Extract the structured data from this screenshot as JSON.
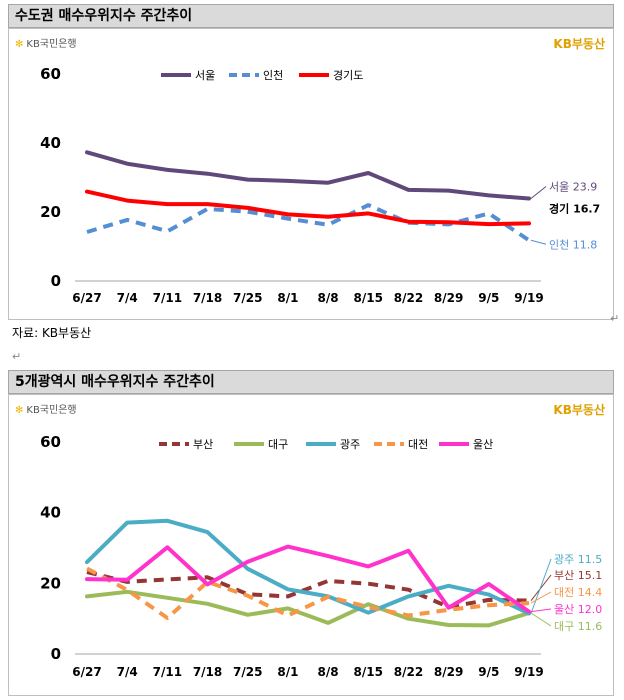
{
  "sections": [
    {
      "title": "수도권 매수우위지수 주간추이"
    },
    {
      "title": "5개광역시 매수우위지수 주간추이"
    }
  ],
  "branding": {
    "bank_logo": "KB국민은행",
    "brand_right": "KB부동산"
  },
  "source": "자료: KB부동산",
  "colors": {
    "서울": "#60497a",
    "인천": "#558ed5",
    "경기도": "#ff0000",
    "부산": "#943634",
    "대구": "#9bbb59",
    "광주": "#4bacc6",
    "대전": "#f79646",
    "울산": "#ff33cc"
  },
  "chart_data": [
    {
      "type": "line",
      "title": "수도권 매수우위지수 주간추이",
      "categories": [
        "6/27",
        "7/4",
        "7/11",
        "7/18",
        "7/25",
        "8/1",
        "8/8",
        "8/15",
        "8/22",
        "8/29",
        "9/5",
        "9/19"
      ],
      "ylim": [
        0,
        60
      ],
      "yticks": [
        0,
        20,
        40,
        60
      ],
      "legend": "top",
      "series": [
        {
          "name": "서울",
          "style": "solid",
          "values": [
            37.3,
            34.0,
            32.2,
            31.1,
            29.4,
            29.0,
            28.5,
            31.3,
            26.4,
            26.2,
            24.8,
            23.9
          ],
          "end_label": "서울",
          "end_value": "23.9"
        },
        {
          "name": "인천",
          "style": "dashed",
          "values": [
            14.2,
            17.7,
            14.4,
            20.9,
            20.1,
            18.1,
            16.3,
            22.0,
            16.9,
            16.4,
            19.6,
            11.8
          ],
          "end_label": "인천",
          "end_value": "11.8"
        },
        {
          "name": "경기도",
          "style": "solid",
          "values": [
            25.9,
            23.3,
            22.3,
            22.3,
            21.2,
            19.3,
            18.6,
            19.6,
            17.2,
            17.0,
            16.5,
            16.7
          ],
          "end_label": "경기",
          "end_value": "16.7"
        }
      ]
    },
    {
      "type": "line",
      "title": "5개광역시 매수우위지수 주간추이",
      "categories": [
        "6/27",
        "7/4",
        "7/11",
        "7/18",
        "7/25",
        "8/1",
        "8/8",
        "8/15",
        "8/22",
        "8/29",
        "9/5",
        "9/19"
      ],
      "ylim": [
        0,
        60
      ],
      "yticks": [
        0,
        20,
        40,
        60
      ],
      "legend": "top",
      "series": [
        {
          "name": "부산",
          "style": "dashed",
          "values": [
            23.2,
            20.4,
            21.1,
            21.7,
            16.9,
            16.3,
            20.7,
            19.9,
            18.2,
            13.3,
            15.3,
            15.1
          ],
          "end_label": "부산",
          "end_value": "15.1"
        },
        {
          "name": "대구",
          "style": "solid",
          "values": [
            16.3,
            17.6,
            15.9,
            14.2,
            11.1,
            12.9,
            8.8,
            14.1,
            10.0,
            8.2,
            8.1,
            11.6
          ],
          "end_label": "대구",
          "end_value": "11.6"
        },
        {
          "name": "광주",
          "style": "solid",
          "values": [
            26.0,
            37.2,
            37.7,
            34.5,
            24.1,
            18.3,
            16.3,
            11.7,
            16.3,
            19.3,
            16.8,
            11.5
          ],
          "end_label": "광주",
          "end_value": "11.5"
        },
        {
          "name": "대전",
          "style": "dashed",
          "values": [
            24.2,
            18.1,
            10.2,
            20.4,
            16.5,
            10.9,
            16.2,
            13.3,
            10.9,
            12.5,
            13.8,
            14.4
          ],
          "end_label": "대전",
          "end_value": "14.4"
        },
        {
          "name": "울산",
          "style": "solid",
          "values": [
            21.2,
            21.0,
            30.2,
            19.7,
            26.1,
            30.4,
            27.7,
            24.8,
            29.2,
            13.1,
            19.8,
            12.0
          ],
          "end_label": "울산",
          "end_value": "12.0"
        }
      ]
    }
  ]
}
